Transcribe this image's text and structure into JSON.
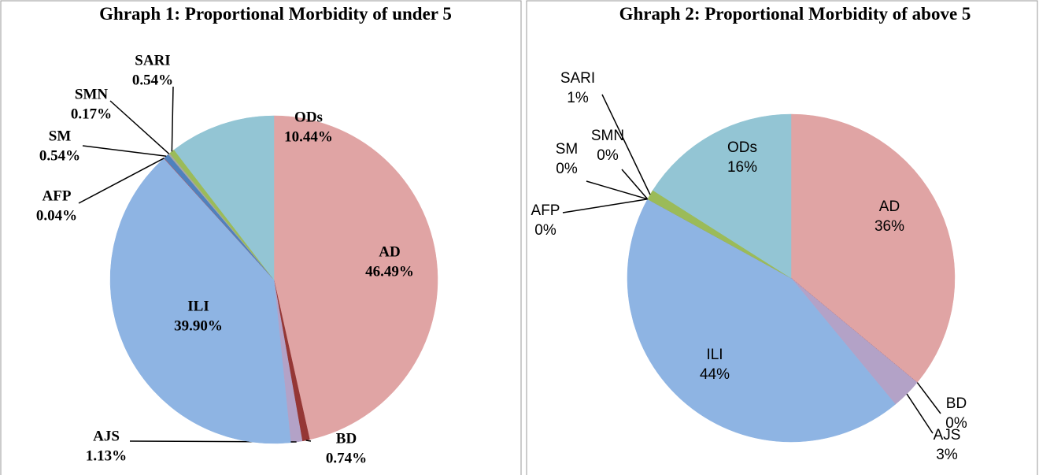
{
  "chart_data": [
    {
      "type": "pie",
      "title": "Ghraph 1: Proportional Morbidity of under 5",
      "categories": [
        "AD",
        "BD",
        "AJS",
        "ILI",
        "AFP",
        "SM",
        "SMN",
        "SARI",
        "ODs"
      ],
      "values": [
        46.49,
        0.74,
        1.13,
        39.9,
        0.04,
        0.54,
        0.17,
        0.54,
        10.44
      ],
      "value_labels": [
        "46.49%",
        "0.74%",
        "1.13%",
        "39.90%",
        "0.04%",
        "0.54%",
        "0.17%",
        "0.54%",
        "10.44%"
      ],
      "colors": [
        "#e0a4a4",
        "#953735",
        "#b3a2c7",
        "#8eb4e3",
        "#c0504d",
        "#4f81bd",
        "#a6a6a6",
        "#9bbb59",
        "#93c5d4"
      ]
    },
    {
      "type": "pie",
      "title": "Ghraph 2: Proportional Morbidity of above 5",
      "categories": [
        "AD",
        "BD",
        "AJS",
        "ILI",
        "AFP",
        "SM",
        "SMN",
        "SARI",
        "ODs"
      ],
      "values": [
        36,
        0,
        3,
        44,
        0,
        0,
        0,
        1,
        16
      ],
      "value_labels": [
        "36%",
        "0%",
        "3%",
        "44%",
        "0%",
        "0%",
        "0%",
        "1%",
        "16%"
      ],
      "colors": [
        "#e0a4a4",
        "#953735",
        "#b3a2c7",
        "#8eb4e3",
        "#c0504d",
        "#4f81bd",
        "#a6a6a6",
        "#9bbb59",
        "#93c5d4"
      ]
    }
  ]
}
